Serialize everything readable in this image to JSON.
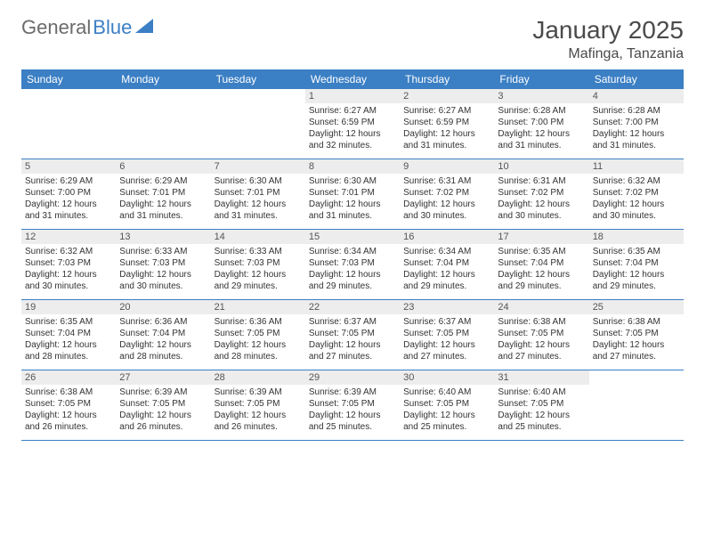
{
  "logo": {
    "text1": "General",
    "text2": "Blue"
  },
  "title": "January 2025",
  "location": "Mafinga, Tanzania",
  "header_bg": "#3b7fc4",
  "daynum_bg": "#ededed",
  "dow": [
    "Sunday",
    "Monday",
    "Tuesday",
    "Wednesday",
    "Thursday",
    "Friday",
    "Saturday"
  ],
  "weeks": [
    [
      null,
      null,
      null,
      {
        "n": "1",
        "sr": "6:27 AM",
        "ss": "6:59 PM",
        "dl": "12 hours and 32 minutes."
      },
      {
        "n": "2",
        "sr": "6:27 AM",
        "ss": "6:59 PM",
        "dl": "12 hours and 31 minutes."
      },
      {
        "n": "3",
        "sr": "6:28 AM",
        "ss": "7:00 PM",
        "dl": "12 hours and 31 minutes."
      },
      {
        "n": "4",
        "sr": "6:28 AM",
        "ss": "7:00 PM",
        "dl": "12 hours and 31 minutes."
      }
    ],
    [
      {
        "n": "5",
        "sr": "6:29 AM",
        "ss": "7:00 PM",
        "dl": "12 hours and 31 minutes."
      },
      {
        "n": "6",
        "sr": "6:29 AM",
        "ss": "7:01 PM",
        "dl": "12 hours and 31 minutes."
      },
      {
        "n": "7",
        "sr": "6:30 AM",
        "ss": "7:01 PM",
        "dl": "12 hours and 31 minutes."
      },
      {
        "n": "8",
        "sr": "6:30 AM",
        "ss": "7:01 PM",
        "dl": "12 hours and 31 minutes."
      },
      {
        "n": "9",
        "sr": "6:31 AM",
        "ss": "7:02 PM",
        "dl": "12 hours and 30 minutes."
      },
      {
        "n": "10",
        "sr": "6:31 AM",
        "ss": "7:02 PM",
        "dl": "12 hours and 30 minutes."
      },
      {
        "n": "11",
        "sr": "6:32 AM",
        "ss": "7:02 PM",
        "dl": "12 hours and 30 minutes."
      }
    ],
    [
      {
        "n": "12",
        "sr": "6:32 AM",
        "ss": "7:03 PM",
        "dl": "12 hours and 30 minutes."
      },
      {
        "n": "13",
        "sr": "6:33 AM",
        "ss": "7:03 PM",
        "dl": "12 hours and 30 minutes."
      },
      {
        "n": "14",
        "sr": "6:33 AM",
        "ss": "7:03 PM",
        "dl": "12 hours and 29 minutes."
      },
      {
        "n": "15",
        "sr": "6:34 AM",
        "ss": "7:03 PM",
        "dl": "12 hours and 29 minutes."
      },
      {
        "n": "16",
        "sr": "6:34 AM",
        "ss": "7:04 PM",
        "dl": "12 hours and 29 minutes."
      },
      {
        "n": "17",
        "sr": "6:35 AM",
        "ss": "7:04 PM",
        "dl": "12 hours and 29 minutes."
      },
      {
        "n": "18",
        "sr": "6:35 AM",
        "ss": "7:04 PM",
        "dl": "12 hours and 29 minutes."
      }
    ],
    [
      {
        "n": "19",
        "sr": "6:35 AM",
        "ss": "7:04 PM",
        "dl": "12 hours and 28 minutes."
      },
      {
        "n": "20",
        "sr": "6:36 AM",
        "ss": "7:04 PM",
        "dl": "12 hours and 28 minutes."
      },
      {
        "n": "21",
        "sr": "6:36 AM",
        "ss": "7:05 PM",
        "dl": "12 hours and 28 minutes."
      },
      {
        "n": "22",
        "sr": "6:37 AM",
        "ss": "7:05 PM",
        "dl": "12 hours and 27 minutes."
      },
      {
        "n": "23",
        "sr": "6:37 AM",
        "ss": "7:05 PM",
        "dl": "12 hours and 27 minutes."
      },
      {
        "n": "24",
        "sr": "6:38 AM",
        "ss": "7:05 PM",
        "dl": "12 hours and 27 minutes."
      },
      {
        "n": "25",
        "sr": "6:38 AM",
        "ss": "7:05 PM",
        "dl": "12 hours and 27 minutes."
      }
    ],
    [
      {
        "n": "26",
        "sr": "6:38 AM",
        "ss": "7:05 PM",
        "dl": "12 hours and 26 minutes."
      },
      {
        "n": "27",
        "sr": "6:39 AM",
        "ss": "7:05 PM",
        "dl": "12 hours and 26 minutes."
      },
      {
        "n": "28",
        "sr": "6:39 AM",
        "ss": "7:05 PM",
        "dl": "12 hours and 26 minutes."
      },
      {
        "n": "29",
        "sr": "6:39 AM",
        "ss": "7:05 PM",
        "dl": "12 hours and 25 minutes."
      },
      {
        "n": "30",
        "sr": "6:40 AM",
        "ss": "7:05 PM",
        "dl": "12 hours and 25 minutes."
      },
      {
        "n": "31",
        "sr": "6:40 AM",
        "ss": "7:05 PM",
        "dl": "12 hours and 25 minutes."
      },
      null
    ]
  ],
  "labels": {
    "sunrise": "Sunrise: ",
    "sunset": "Sunset: ",
    "daylight": "Daylight: "
  }
}
